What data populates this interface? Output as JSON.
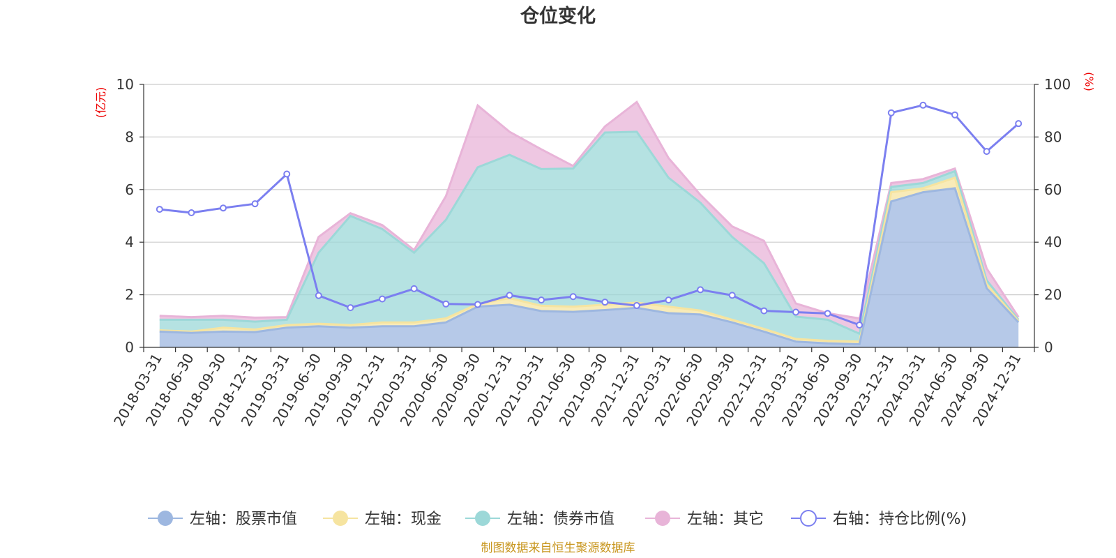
{
  "chart_data": {
    "type": "area",
    "title": "仓位变化",
    "left_unit": "(亿元)",
    "right_unit": "(%)",
    "x": [
      "2018-03-31",
      "2018-06-30",
      "2018-09-30",
      "2018-12-31",
      "2019-03-31",
      "2019-06-30",
      "2019-09-30",
      "2019-12-31",
      "2020-03-31",
      "2020-06-30",
      "2020-09-30",
      "2020-12-31",
      "2021-03-31",
      "2021-06-30",
      "2021-09-30",
      "2021-12-31",
      "2022-03-31",
      "2022-06-30",
      "2022-09-30",
      "2022-12-31",
      "2023-03-31",
      "2023-06-30",
      "2023-09-30",
      "2023-12-31",
      "2024-03-31",
      "2024-06-30",
      "2024-09-30",
      "2024-12-31"
    ],
    "ylim_left": [
      0,
      10
    ],
    "ylim_right": [
      0,
      100
    ],
    "yticks_left": [
      "0",
      "2",
      "4",
      "6",
      "8",
      "10"
    ],
    "yticks_right": [
      "0",
      "20",
      "40",
      "60",
      "80",
      "100"
    ],
    "stacked": true,
    "series": [
      {
        "name": "左轴：股票市值",
        "axis": "left",
        "color": "#9db7e0",
        "values": [
          0.6,
          0.55,
          0.6,
          0.58,
          0.75,
          0.8,
          0.75,
          0.8,
          0.8,
          0.95,
          1.55,
          1.62,
          1.38,
          1.35,
          1.42,
          1.5,
          1.3,
          1.25,
          0.95,
          0.6,
          0.22,
          0.15,
          0.12,
          5.55,
          5.9,
          6.05,
          2.25,
          0.95
        ]
      },
      {
        "name": "左轴：现金",
        "axis": "left",
        "color": "#f6e4a0",
        "values": [
          0.05,
          0.05,
          0.15,
          0.1,
          0.1,
          0.1,
          0.1,
          0.15,
          0.15,
          0.15,
          0.1,
          0.25,
          0.2,
          0.2,
          0.2,
          0.2,
          0.25,
          0.15,
          0.1,
          0.1,
          0.1,
          0.1,
          0.1,
          0.35,
          0.15,
          0.4,
          0.15,
          0.05
        ]
      },
      {
        "name": "左轴：债券市值",
        "axis": "left",
        "color": "#9cd8d8",
        "values": [
          0.4,
          0.45,
          0.3,
          0.3,
          0.2,
          2.7,
          4.15,
          3.55,
          2.65,
          3.75,
          5.2,
          5.45,
          5.2,
          5.25,
          6.55,
          6.5,
          4.9,
          4.1,
          3.15,
          2.5,
          0.85,
          0.8,
          0.3,
          0.2,
          0.2,
          0.25,
          0.15,
          0.05
        ]
      },
      {
        "name": "左轴：其它",
        "axis": "left",
        "color": "#e8b4d8",
        "values": [
          0.15,
          0.1,
          0.15,
          0.15,
          0.1,
          0.6,
          0.1,
          0.15,
          0.1,
          0.9,
          2.35,
          0.88,
          0.75,
          0.1,
          0.23,
          1.13,
          0.75,
          0.3,
          0.4,
          0.85,
          0.5,
          0.25,
          0.58,
          0.15,
          0.15,
          0.1,
          0.45,
          0.1
        ]
      },
      {
        "name": "右轴：持仓比例(%)",
        "axis": "right",
        "color": "#7b7ff0",
        "values": [
          52.5,
          51.2,
          53.0,
          54.6,
          65.9,
          19.7,
          15.1,
          18.4,
          22.3,
          16.5,
          16.3,
          19.8,
          18.0,
          19.3,
          17.2,
          15.9,
          18.0,
          21.9,
          19.8,
          13.9,
          13.4,
          12.9,
          8.5,
          89.2,
          92.1,
          88.4,
          74.5,
          85.1
        ]
      }
    ],
    "legend_position": "bottom",
    "grid": true,
    "source_note": "制图数据来自恒生聚源数据库"
  }
}
